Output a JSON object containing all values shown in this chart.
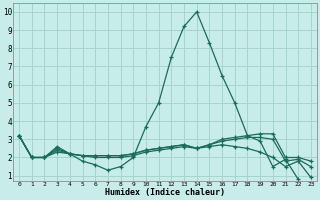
{
  "xlabel": "Humidex (Indice chaleur)",
  "xlim": [
    -0.5,
    23.5
  ],
  "ylim": [
    0.7,
    10.5
  ],
  "xticks": [
    0,
    1,
    2,
    3,
    4,
    5,
    6,
    7,
    8,
    9,
    10,
    11,
    12,
    13,
    14,
    15,
    16,
    17,
    18,
    19,
    20,
    21,
    22,
    23
  ],
  "yticks": [
    1,
    2,
    3,
    4,
    5,
    6,
    7,
    8,
    9,
    10
  ],
  "background_color": "#c8ecea",
  "grid_color": "#a8d4d0",
  "line_color": "#1a6b5a",
  "lines": [
    {
      "x": [
        0,
        1,
        2,
        3,
        4,
        5,
        6,
        7,
        8,
        9,
        10,
        11,
        12,
        13,
        14,
        15,
        16,
        17,
        18,
        19,
        20,
        21,
        22,
        23
      ],
      "y": [
        3.2,
        2.0,
        2.0,
        2.6,
        2.2,
        1.8,
        1.6,
        1.3,
        1.5,
        2.0,
        3.7,
        5.0,
        7.5,
        9.2,
        10.0,
        8.3,
        6.5,
        5.0,
        3.2,
        2.9,
        1.5,
        1.9,
        0.8,
        null
      ]
    },
    {
      "x": [
        0,
        1,
        2,
        3,
        4,
        5,
        6,
        7,
        8,
        9,
        10,
        11,
        12,
        13,
        14,
        15,
        16,
        17,
        18,
        19,
        20,
        21,
        22,
        23
      ],
      "y": [
        3.2,
        2.0,
        2.0,
        2.5,
        2.2,
        2.1,
        2.1,
        2.1,
        2.1,
        2.2,
        2.4,
        2.5,
        2.6,
        2.7,
        2.5,
        2.7,
        3.0,
        3.1,
        3.2,
        3.3,
        3.3,
        2.0,
        2.0,
        1.8
      ]
    },
    {
      "x": [
        0,
        1,
        2,
        3,
        4,
        5,
        6,
        7,
        8,
        9,
        10,
        11,
        12,
        13,
        14,
        15,
        16,
        17,
        18,
        19,
        20,
        21,
        22,
        23
      ],
      "y": [
        3.2,
        2.0,
        2.0,
        2.4,
        2.2,
        2.1,
        2.1,
        2.1,
        2.1,
        2.2,
        2.4,
        2.5,
        2.6,
        2.7,
        2.5,
        2.7,
        2.9,
        3.0,
        3.1,
        3.1,
        3.0,
        1.8,
        1.9,
        1.5
      ]
    },
    {
      "x": [
        0,
        1,
        2,
        3,
        4,
        5,
        6,
        7,
        8,
        9,
        10,
        11,
        12,
        13,
        14,
        15,
        16,
        17,
        18,
        19,
        20,
        21,
        22,
        23
      ],
      "y": [
        3.2,
        2.0,
        2.0,
        2.3,
        2.2,
        2.1,
        2.0,
        2.0,
        2.0,
        2.1,
        2.3,
        2.4,
        2.5,
        2.6,
        2.5,
        2.6,
        2.7,
        2.6,
        2.5,
        2.3,
        2.0,
        1.5,
        1.8,
        0.9
      ]
    }
  ]
}
